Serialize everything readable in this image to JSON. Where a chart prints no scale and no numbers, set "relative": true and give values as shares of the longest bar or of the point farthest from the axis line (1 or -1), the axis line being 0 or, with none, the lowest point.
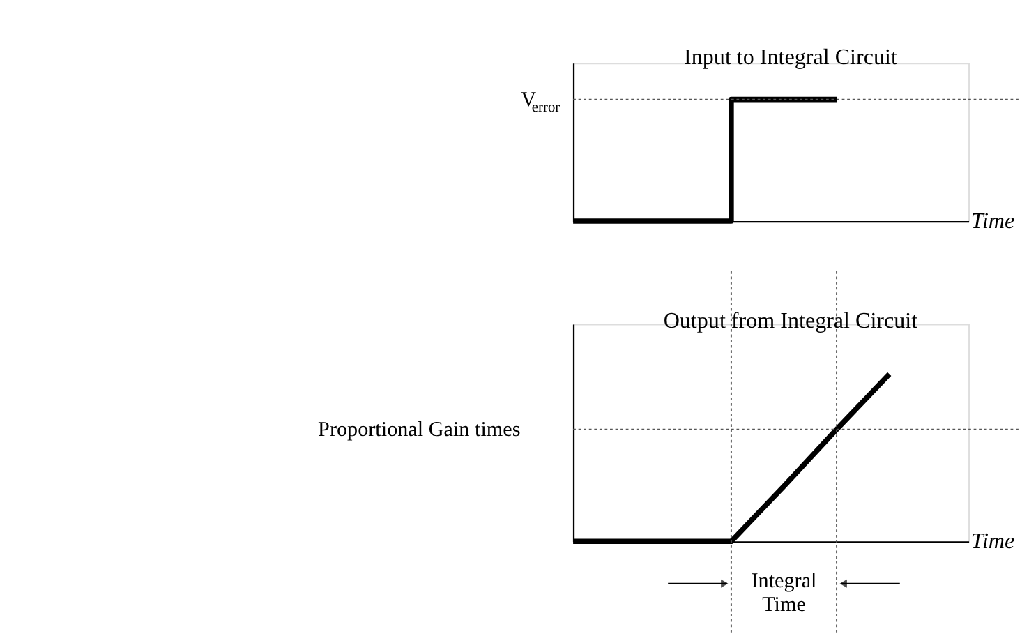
{
  "chart_data": [
    {
      "type": "step",
      "title": "Input to Integral Circuit",
      "xlabel": "Time",
      "relative": true,
      "categories": [
        null,
        null,
        null,
        null,
        null,
        null,
        null,
        null
      ],
      "values": [
        0,
        0,
        0,
        1,
        1,
        1,
        null,
        null
      ],
      "color": "#000000",
      "ref_lines": [
        {
          "axis": "y",
          "value": 1,
          "label": "V$_{error}$",
          "line_style": "dotted",
          "color": "#555555"
        }
      ]
    },
    {
      "type": "line",
      "title": "Output from Integral Circuit",
      "xlabel": "Time",
      "relative": true,
      "categories": [
        null,
        null,
        null,
        null,
        null,
        null,
        null,
        null
      ],
      "values": [
        0,
        0,
        0,
        0,
        0.33,
        0.67,
        1,
        null
      ],
      "color": "#000000",
      "ref_lines": [
        {
          "axis": "y",
          "value": 0.67,
          "label": "Proportional Gain times",
          "line_style": "dotted",
          "color": "#555555"
        }
      ],
      "annotations": [
        "Integral Time"
      ]
    }
  ]
}
